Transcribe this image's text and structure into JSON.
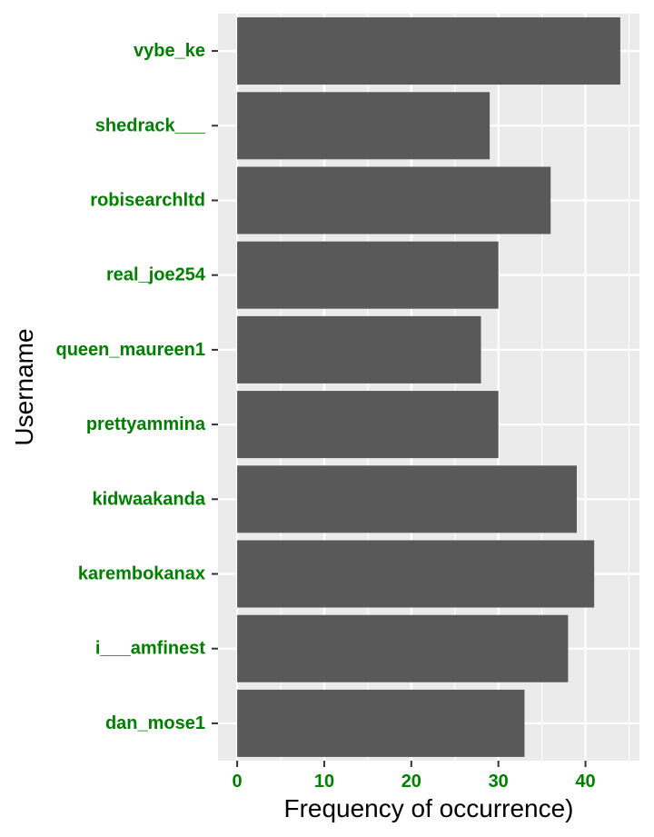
{
  "chart_data": {
    "type": "bar",
    "orientation": "horizontal",
    "categories": [
      "vybe_ke",
      "shedrack___",
      "robisearchltd",
      "real_joe254",
      "queen_maureen1",
      "prettyammina",
      "kidwaakanda",
      "karembokanax",
      "i___amfinest",
      "dan_mose1"
    ],
    "values": [
      44,
      29,
      36,
      30,
      28,
      30,
      39,
      41,
      38,
      33
    ],
    "xlabel": "Frequency of occurrence)",
    "ylabel": "Username",
    "xticks": [
      0,
      10,
      20,
      30,
      40
    ],
    "xlim": [
      -2.2,
      46.2
    ],
    "grid": true,
    "legend": "none",
    "colors": {
      "bar": "#595959",
      "panel": "#ebebeb",
      "grid": "#ffffff",
      "tick_text": "#008000"
    }
  }
}
